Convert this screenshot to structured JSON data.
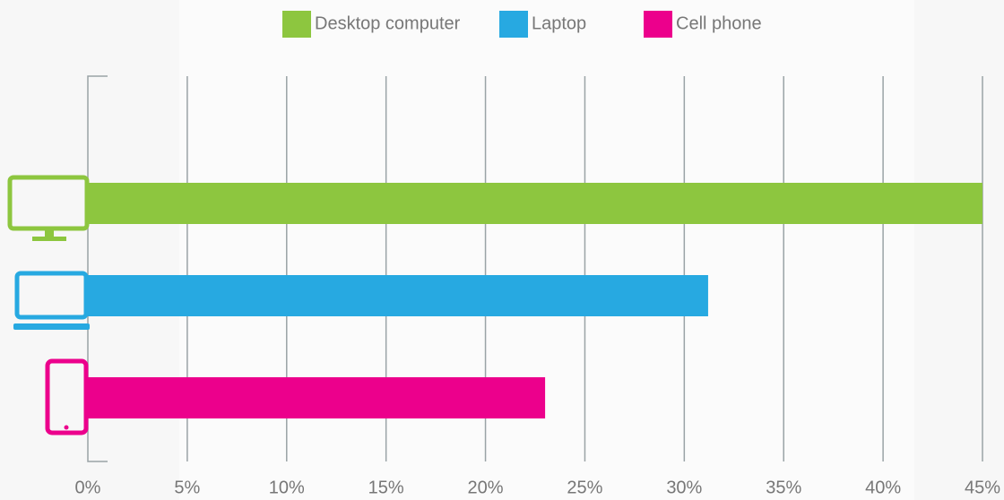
{
  "chart_data": {
    "type": "bar",
    "orientation": "horizontal",
    "categories": [
      null,
      null,
      null
    ],
    "series": [
      {
        "name": "Desktop computer",
        "color": "#8dc63f",
        "values": [
          45,
          null,
          null
        ]
      },
      {
        "name": "Laptop",
        "color": "#27a9e1",
        "values": [
          null,
          31.2,
          null
        ]
      },
      {
        "name": "Cell phone",
        "color": "#ec008c",
        "values": [
          null,
          null,
          23
        ]
      }
    ],
    "xlim": [
      0,
      45
    ],
    "xticks": [
      {
        "value": 0,
        "label": "0%"
      },
      {
        "value": 5,
        "label": "5%"
      },
      {
        "value": 10,
        "label": "10%"
      },
      {
        "value": 15,
        "label": "15%"
      },
      {
        "value": 20,
        "label": "20%"
      },
      {
        "value": 25,
        "label": "25%"
      },
      {
        "value": 30,
        "label": "30%"
      },
      {
        "value": 35,
        "label": "35%"
      },
      {
        "value": 40,
        "label": "40%"
      },
      {
        "value": 45,
        "label": "45%"
      }
    ],
    "grid": true,
    "legend": "top"
  }
}
